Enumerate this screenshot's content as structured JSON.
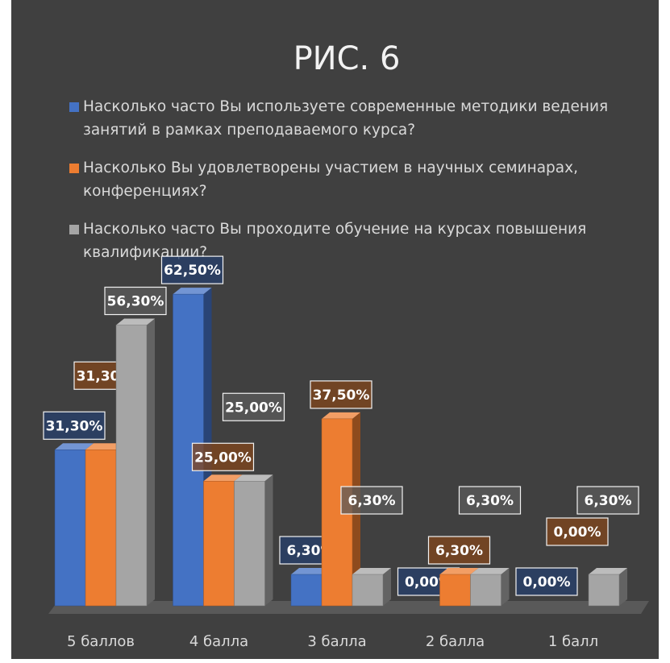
{
  "chart_data": {
    "type": "bar3d",
    "title": "РИС. 6",
    "categories": [
      "5 баллов",
      "4 балла",
      "3 балла",
      "2 балла",
      "1 балл"
    ],
    "series": [
      {
        "name": "Насколько часто Вы используете современные методики ведения занятий в рамках преподаваемого курса?",
        "color": "#4472c4",
        "values": [
          31.3,
          62.5,
          6.3,
          0,
          0
        ],
        "value_labels": [
          "31,30%",
          "62,50%",
          "6,30%",
          "0,00%",
          "0,00%"
        ]
      },
      {
        "name": "Насколько Вы удовлетворены участием в научных семинарах, конференциях?",
        "color": "#ed7d31",
        "values": [
          31.3,
          25,
          37.5,
          6.3,
          0
        ],
        "value_labels": [
          "31,30%",
          "25,00%",
          "37,50%",
          "6,30%",
          "0,00%"
        ]
      },
      {
        "name": "Насколько часто Вы проходите обучение на курсах повышения квалификации?",
        "color": "#a5a5a5",
        "values": [
          56.3,
          25,
          6.3,
          6.3,
          6.3
        ],
        "value_labels": [
          "56,30%",
          "25,00%",
          "6,30%",
          "6,30%",
          "6,30%"
        ]
      }
    ],
    "legend": "top"
  }
}
